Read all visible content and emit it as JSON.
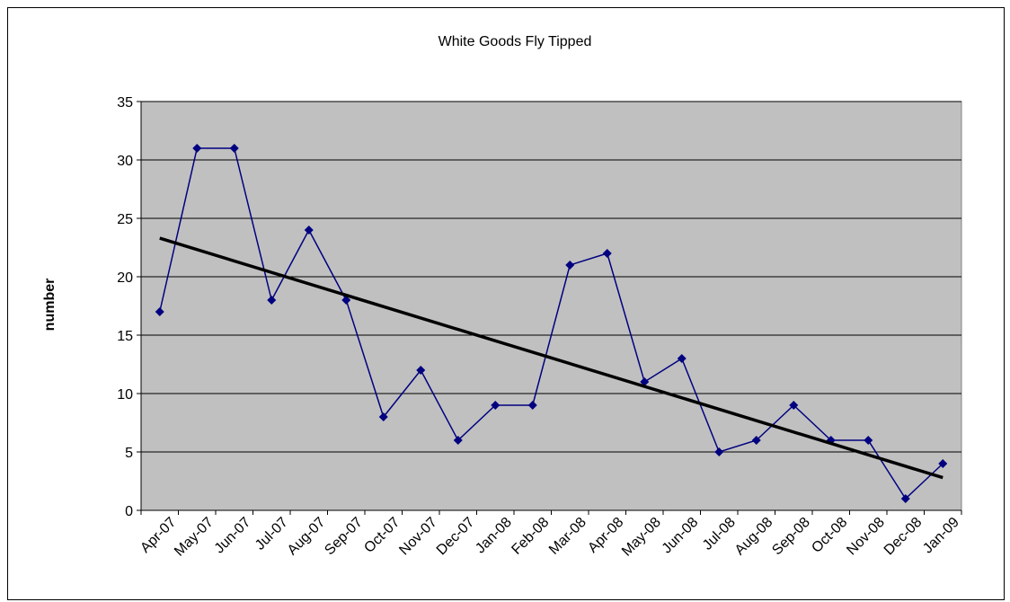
{
  "chart_data": {
    "type": "line",
    "title": "White Goods Fly Tipped",
    "xlabel": "",
    "ylabel": "number",
    "categories": [
      "Apr-07",
      "May-07",
      "Jun-07",
      "Jul-07",
      "Aug-07",
      "Sep-07",
      "Oct-07",
      "Nov-07",
      "Dec-07",
      "Jan-08",
      "Feb-08",
      "Mar-08",
      "Apr-08",
      "May-08",
      "Jun-08",
      "Jul-08",
      "Aug-08",
      "Sep-08",
      "Oct-08",
      "Nov-08",
      "Dec-08",
      "Jan-09"
    ],
    "series": [
      {
        "values": [
          17,
          31,
          31,
          18,
          24,
          18,
          8,
          12,
          6,
          9,
          9,
          21,
          22,
          11,
          13,
          5,
          6,
          9,
          6,
          6,
          1,
          4
        ],
        "color": "#000080",
        "marker": "diamond"
      }
    ],
    "trendline": {
      "type": "linear",
      "start": 23.3,
      "end": 2.8,
      "color": "#000000"
    },
    "ylim": [
      0,
      35
    ],
    "yticks": [
      0,
      5,
      10,
      15,
      20,
      25,
      30,
      35
    ],
    "grid": true,
    "legend": "none",
    "plot_background": "#c0c0c0"
  }
}
